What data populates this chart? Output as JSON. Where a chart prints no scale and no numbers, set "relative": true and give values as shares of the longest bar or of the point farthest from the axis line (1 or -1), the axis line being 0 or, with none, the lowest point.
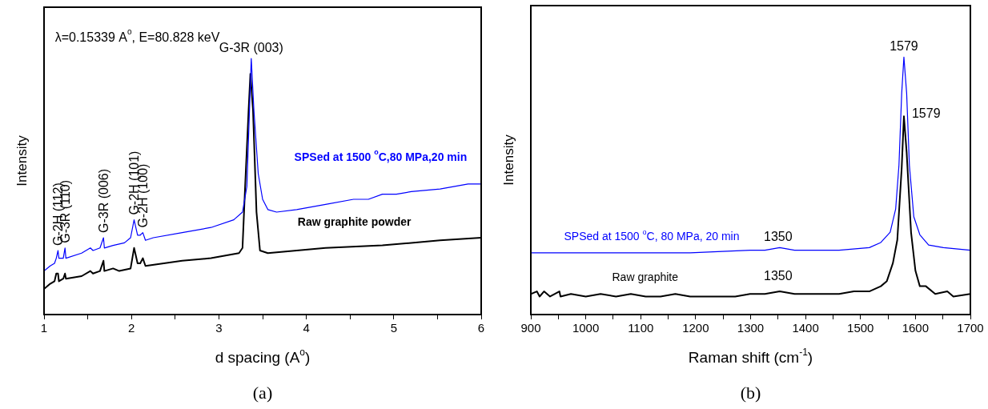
{
  "chart_data": [
    {
      "type": "line",
      "title": "(a)",
      "xlabel": "d spacing (A$^{o}$)",
      "ylabel": "Intensity",
      "relative": true,
      "tick_labels": "x",
      "grid": false,
      "legend": false,
      "marker": "none",
      "line_style": "solid",
      "xlim": [
        1,
        6
      ],
      "xticks": [
        1,
        {
          "value": 1.5,
          "label": null
        },
        2,
        {
          "value": 2.5,
          "label": null
        },
        3,
        {
          "value": 3.5,
          "label": null
        },
        4,
        {
          "value": 4.5,
          "label": null
        },
        5,
        {
          "value": 5.5,
          "label": null
        },
        6
      ],
      "series": [
        {
          "name": "SPSed at 1500 $^{o}$C,80 MPa,20 min",
          "color": "#0000ff",
          "x": [
            1.0,
            1.07,
            1.12,
            1.14,
            1.16,
            1.17,
            1.22,
            1.24,
            1.25,
            1.43,
            1.53,
            1.56,
            1.64,
            1.68,
            1.69,
            1.79,
            1.92,
            1.99,
            2.03,
            2.07,
            2.1,
            2.13,
            2.16,
            2.25,
            2.58,
            2.91,
            3.17,
            3.27,
            3.32,
            3.35,
            3.37,
            3.4,
            3.45,
            3.5,
            3.56,
            3.66,
            3.89,
            4.22,
            4.54,
            4.71,
            4.87,
            4.94,
            5.03,
            5.2,
            5.53,
            5.85,
            6.0
          ],
          "values": [
            0.17,
            0.19,
            0.2,
            0.22,
            0.25,
            0.22,
            0.22,
            0.26,
            0.22,
            0.24,
            0.26,
            0.25,
            0.26,
            0.3,
            0.26,
            0.27,
            0.28,
            0.3,
            0.37,
            0.31,
            0.31,
            0.32,
            0.29,
            0.3,
            0.32,
            0.34,
            0.37,
            0.4,
            0.5,
            0.8,
            1,
            0.8,
            0.55,
            0.45,
            0.41,
            0.4,
            0.41,
            0.43,
            0.45,
            0.45,
            0.47,
            0.47,
            0.47,
            0.48,
            0.49,
            0.51,
            0.51
          ]
        },
        {
          "name": "Raw graphite powder",
          "color": "#000000",
          "x": [
            1.0,
            1.07,
            1.12,
            1.14,
            1.16,
            1.17,
            1.22,
            1.24,
            1.25,
            1.43,
            1.53,
            1.56,
            1.64,
            1.68,
            1.69,
            1.79,
            1.86,
            1.99,
            2.03,
            2.07,
            2.1,
            2.13,
            2.16,
            2.58,
            2.91,
            3.23,
            3.27,
            3.3,
            3.34,
            3.36,
            3.39,
            3.43,
            3.47,
            3.56,
            3.89,
            4.22,
            4.87,
            5.2,
            5.53,
            6.0
          ],
          "values": [
            0.1,
            0.12,
            0.13,
            0.16,
            0.16,
            0.13,
            0.14,
            0.16,
            0.14,
            0.15,
            0.17,
            0.16,
            0.17,
            0.21,
            0.17,
            0.18,
            0.17,
            0.18,
            0.26,
            0.2,
            0.2,
            0.22,
            0.19,
            0.21,
            0.22,
            0.24,
            0.26,
            0.5,
            0.8,
            0.94,
            0.8,
            0.4,
            0.25,
            0.24,
            0.25,
            0.26,
            0.27,
            0.28,
            0.29,
            0.3
          ]
        }
      ],
      "annotations": [
        "λ=0.15339 A$^{o}$, E=80.828 keV",
        {
          "text": "G-3R (003)",
          "x": 3.37,
          "y": 1
        },
        {
          "text": "G-2H (112)",
          "x": 1.16,
          "y": 0.25
        },
        {
          "text": "G-3R (110)",
          "x": 1.24,
          "y": 0.26
        },
        {
          "text": "G-3R (006)",
          "x": 1.68,
          "y": 0.3
        },
        {
          "text": "G-2H (101)",
          "x": 2.03,
          "y": 0.37
        },
        {
          "text": "G-2H (100)",
          "x": 2.13,
          "y": 0.32
        }
      ]
    },
    {
      "type": "line",
      "title": "(b)",
      "xlabel": "Raman shift (cm$^{-1}$)",
      "ylabel": "Intensity",
      "relative": true,
      "tick_labels": "x",
      "grid": false,
      "legend": false,
      "marker": "none",
      "line_style": "solid",
      "xlim": [
        900,
        1700
      ],
      "xticks": [
        900,
        {
          "value": 950,
          "label": null
        },
        1000,
        {
          "value": 1050,
          "label": null
        },
        1100,
        {
          "value": 1150,
          "label": null
        },
        1200,
        {
          "value": 1250,
          "label": null
        },
        1300,
        {
          "value": 1350,
          "label": null
        },
        1400,
        {
          "value": 1450,
          "label": null
        },
        1500,
        {
          "value": 1550,
          "label": null
        },
        1600,
        {
          "value": 1650,
          "label": null
        },
        1700
      ],
      "series": [
        {
          "name": "SPSed at 1500 $^{o}$C, 80 MPa, 20 min",
          "color": "#0000ff",
          "x": [
            900,
            973,
            1082,
            1190,
            1299,
            1326,
            1353,
            1380,
            1407,
            1461,
            1516,
            1537,
            1554,
            1564,
            1570,
            1575,
            1579,
            1584,
            1589,
            1597,
            1608,
            1624,
            1651,
            1700
          ],
          "values": [
            0.24,
            0.24,
            0.24,
            0.24,
            0.25,
            0.25,
            0.26,
            0.25,
            0.25,
            0.25,
            0.26,
            0.28,
            0.32,
            0.41,
            0.58,
            0.86,
            1,
            0.86,
            0.58,
            0.38,
            0.31,
            0.27,
            0.26,
            0.25
          ]
        },
        {
          "name": "Raw graphite",
          "color": "#000000",
          "x": [
            900,
            911,
            916,
            924,
            935,
            952,
            954,
            973,
            1000,
            1027,
            1055,
            1082,
            1109,
            1136,
            1163,
            1190,
            1217,
            1244,
            1272,
            1299,
            1326,
            1353,
            1380,
            1407,
            1434,
            1461,
            1488,
            1516,
            1537,
            1548,
            1559,
            1567,
            1575,
            1579,
            1584,
            1592,
            1600,
            1608,
            1619,
            1636,
            1658,
            1669,
            1700
          ],
          "values": [
            0.08,
            0.09,
            0.07,
            0.09,
            0.07,
            0.09,
            0.07,
            0.08,
            0.07,
            0.08,
            0.07,
            0.08,
            0.07,
            0.07,
            0.08,
            0.07,
            0.07,
            0.07,
            0.07,
            0.08,
            0.08,
            0.09,
            0.08,
            0.08,
            0.08,
            0.08,
            0.09,
            0.09,
            0.11,
            0.13,
            0.2,
            0.29,
            0.57,
            0.77,
            0.63,
            0.32,
            0.17,
            0.11,
            0.11,
            0.08,
            0.09,
            0.07,
            0.08
          ]
        }
      ],
      "annotations": [
        {
          "text": "1579",
          "x": 1579,
          "y": 1
        },
        {
          "text": "1579",
          "x": 1579,
          "y": 0.77
        },
        {
          "text": "1350",
          "x": 1350,
          "y": 0.26
        },
        {
          "text": "1350",
          "x": 1350,
          "y": 0.09
        }
      ]
    }
  ]
}
